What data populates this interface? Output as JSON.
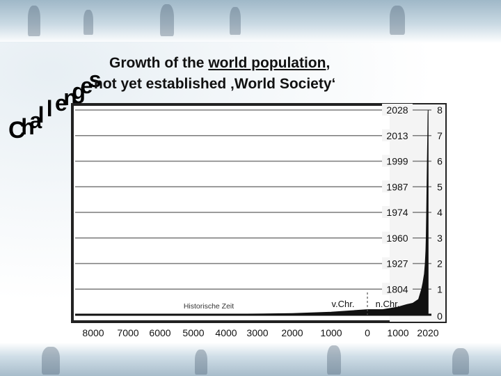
{
  "slide": {
    "header_word": "Challenges",
    "title_line1_prefix": "Growth of the ",
    "title_line1_link": "world population",
    "title_line1_suffix": ",",
    "title_line2": "not yet established ‚World Society‘"
  },
  "chart_data": {
    "type": "area",
    "title": "",
    "xlabel": "",
    "ylabel": "",
    "region_labels": {
      "historic": "Historische Zeit",
      "bc": "v.Chr.",
      "ad": "n.Chr."
    },
    "x_tick_labels": [
      "8000",
      "7000",
      "6000",
      "5000",
      "4000",
      "3000",
      "2000",
      "1000",
      "0",
      "1000",
      "2020"
    ],
    "x_ticks_year": [
      -8000,
      -7000,
      -6000,
      -5000,
      -4000,
      -3000,
      -2000,
      -1000,
      0,
      1000,
      2020
    ],
    "y_ticks": [
      0,
      1,
      2,
      3,
      4,
      5,
      6,
      7,
      8
    ],
    "ylim": [
      0,
      8
    ],
    "ylabel_units": "",
    "milestones": [
      {
        "year": "1804",
        "population": 1
      },
      {
        "year": "1927",
        "population": 2
      },
      {
        "year": "1960",
        "population": 3
      },
      {
        "year": "1974",
        "population": 4
      },
      {
        "year": "1987",
        "population": 5
      },
      {
        "year": "1999",
        "population": 6
      },
      {
        "year": "2013",
        "population": 7
      },
      {
        "year": "2028",
        "population": 8
      }
    ],
    "series": [
      {
        "x": [
          -8000,
          -7000,
          -6000,
          -5000,
          -4000,
          -3000,
          -2000,
          -1000,
          0,
          500,
          1000,
          1300,
          1500,
          1700,
          1804,
          1850,
          1900,
          1927,
          1950,
          1960,
          1974,
          1987,
          1999,
          2013,
          2020,
          2028
        ],
        "values": [
          0.005,
          0.007,
          0.01,
          0.015,
          0.02,
          0.03,
          0.05,
          0.1,
          0.2,
          0.2,
          0.3,
          0.4,
          0.45,
          0.6,
          1,
          1.25,
          1.6,
          2,
          2.5,
          3,
          4,
          5,
          6,
          7,
          7.8,
          8
        ]
      }
    ],
    "grid": true,
    "colors": {
      "fill": "#111111",
      "gridline": "#7a7a7a",
      "plot_bg": "#ffffff"
    }
  }
}
